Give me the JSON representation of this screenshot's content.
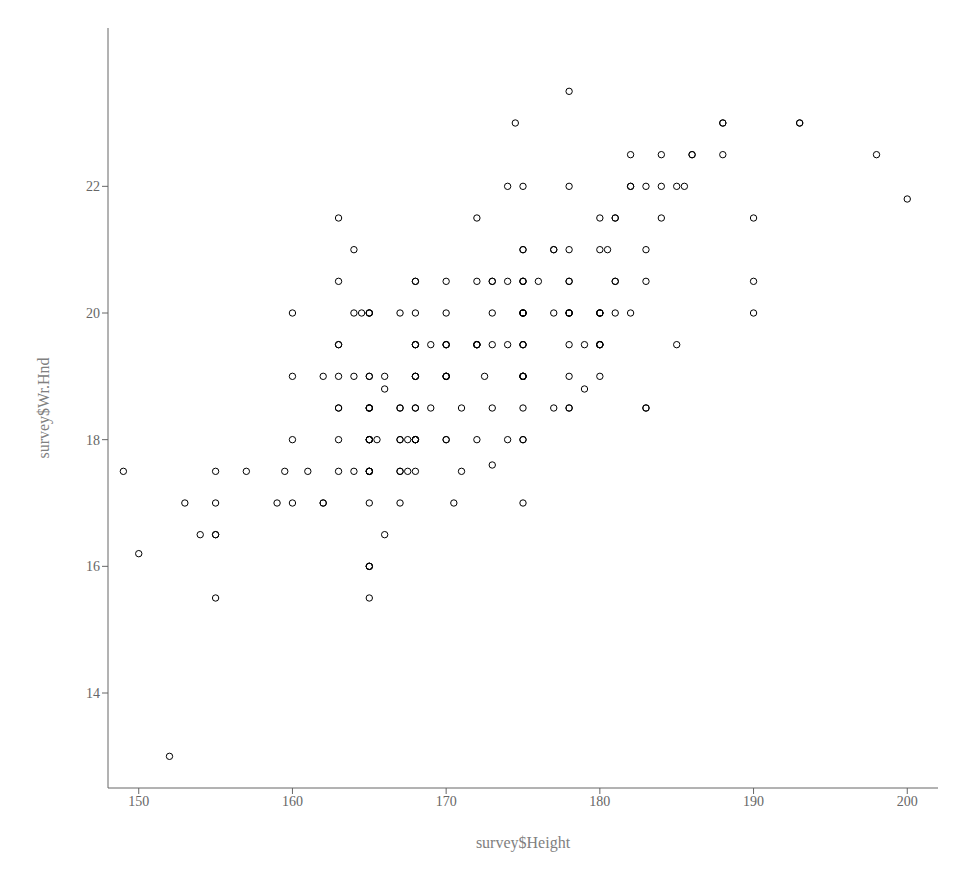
{
  "chart_data": {
    "type": "scatter",
    "x": [
      173.0,
      179.0,
      167.0,
      160.0,
      165.0,
      170.0,
      167.5,
      159.5,
      177.0,
      163.0,
      149.0,
      174.5,
      155.0,
      163.0,
      164.0,
      164.0,
      168.0,
      175.0,
      180.0,
      175.0,
      165.0,
      170.0,
      180.0,
      165.0,
      172.0,
      185.5,
      174.0,
      178.0,
      165.5,
      170.5,
      166.0,
      153.0,
      150.0,
      175.0,
      163.0,
      181.0,
      167.0,
      181.0,
      177.0,
      163.0,
      175.0,
      183.0,
      155.0,
      157.0,
      178.0,
      164.0,
      168.0,
      167.0,
      152.0,
      165.0,
      162.0,
      159.0,
      155.0,
      175.0,
      165.0,
      180.0,
      170.0,
      175.0,
      165.0,
      155.0,
      165.0,
      165.0,
      163.0,
      170.0,
      163.0,
      180.5,
      160.0,
      169.0,
      175.0,
      154.0,
      161.0,
      188.0,
      166.0,
      168.0,
      186.0,
      165.0,
      165.0,
      165.0,
      167.5,
      175.0,
      175.0,
      183.0,
      170.0,
      167.0,
      173.0,
      167.0,
      175.0,
      167.0,
      180.0,
      168.0,
      155.0,
      165.0,
      165.0,
      165.0,
      178.0,
      174.0,
      168.0,
      166.0,
      175.0,
      169.0,
      178.0,
      165.0,
      175.0,
      172.0,
      162.0,
      180.0,
      181.0,
      175.0,
      168.0,
      170.0,
      170.0,
      175.0,
      168.0,
      180.0,
      182.0,
      165.0,
      183.0,
      168.0,
      174.0,
      180.0,
      175.0,
      185.0,
      181.0,
      168.0,
      177.0,
      172.0,
      186.0,
      175.0,
      180.0,
      180.0,
      178.0,
      175.0,
      168.0,
      178.0,
      178.0,
      175.0,
      182.0,
      179.0,
      172.5,
      183.0,
      188.0,
      165.0,
      165.0,
      184.0,
      172.0,
      176.0,
      180.0,
      184.0,
      178.0,
      171.0,
      175.0,
      173.0,
      190.0,
      190.0,
      170.0,
      160.0,
      170.0,
      160.0,
      167.0,
      182.0,
      173.0,
      175.0,
      178.0,
      168.0,
      163.0,
      178.0,
      171.0,
      178.0,
      168.0,
      165.0,
      162.0,
      178.0,
      165.0,
      168.0,
      177.0,
      193.0,
      163.0,
      165.0,
      168.0,
      193.0,
      167.0,
      175.0,
      168.0,
      188.0,
      174.0,
      175.0,
      165.0,
      164.5,
      185.0,
      190.0,
      184.0,
      182.0,
      175.0,
      180.0,
      181.0,
      183.0,
      198.0,
      200.0,
      163.0,
      168.0,
      172.0,
      170.0,
      172.0,
      172.0,
      173.0,
      173.0,
      164.0,
      170.0,
      178.0
    ],
    "y": [
      17.6,
      18.8,
      20.0,
      18.0,
      20.0,
      19.5,
      18.0,
      17.5,
      21.0,
      21.5,
      17.5,
      23.0,
      16.5,
      19.5,
      21.0,
      17.5,
      18.0,
      19.0,
      20.0,
      20.0,
      20.0,
      19.5,
      19.0,
      19.0,
      18.0,
      22.0,
      19.5,
      20.0,
      18.0,
      17.0,
      18.8,
      17.0,
      16.2,
      17.0,
      19.0,
      21.5,
      18.5,
      20.0,
      18.5,
      18.0,
      20.0,
      18.5,
      16.5,
      17.5,
      20.0,
      20.0,
      18.0,
      17.0,
      13.0,
      16.0,
      17.0,
      17.0,
      15.5,
      18.0,
      18.0,
      19.5,
      19.0,
      19.0,
      15.5,
      17.5,
      18.0,
      17.5,
      20.5,
      18.0,
      17.5,
      21.0,
      17.0,
      19.5,
      18.5,
      16.5,
      17.5,
      22.5,
      19.0,
      18.0,
      22.5,
      18.5,
      18.5,
      18.0,
      17.5,
      21.0,
      20.5,
      21.0,
      19.0,
      17.5,
      19.5,
      17.5,
      18.0,
      18.0,
      20.0,
      18.5,
      17.0,
      17.5,
      17.0,
      16.0,
      19.5,
      18.0,
      18.5,
      16.5,
      19.0,
      18.5,
      20.0,
      18.0,
      19.5,
      19.5,
      17.0,
      19.5,
      20.5,
      19.0,
      19.0,
      19.5,
      18.0,
      19.0,
      18.0,
      20.0,
      22.0,
      16.0,
      18.5,
      20.0,
      20.5,
      19.5,
      20.0,
      19.5,
      21.5,
      20.5,
      21.0,
      19.5,
      22.5,
      19.5,
      21.0,
      21.5,
      23.5,
      20.5,
      19.0,
      20.5,
      20.0,
      20.0,
      20.0,
      19.5,
      19.0,
      22.0,
      23.0,
      20.0,
      18.5,
      22.5,
      20.5,
      20.5,
      19.5,
      21.5,
      20.5,
      17.5,
      21.0,
      20.5,
      21.5,
      20.0,
      19.0,
      19.0,
      20.5,
      20.0,
      18.5,
      22.0,
      20.0,
      22.0,
      21.0,
      19.5,
      18.5,
      22.0,
      18.5,
      19.0,
      17.5,
      18.5,
      19.0,
      18.5,
      17.5,
      19.0,
      20.0,
      23.0,
      18.5,
      19.0,
      19.5,
      23.0,
      18.0,
      19.5,
      19.5,
      23.0,
      22.0,
      20.0,
      17.5,
      20.0,
      22.0,
      20.5,
      22.0,
      22.5,
      20.5,
      20.0,
      20.5,
      20.5,
      22.5,
      21.8,
      19.5,
      20.5,
      21.5,
      19.0,
      19.5,
      19.5,
      20.5,
      18.5,
      19.0,
      20.0,
      18.5
    ],
    "xlabel": "survey$Height",
    "ylabel": "survey$Wr.Hnd",
    "xlim": [
      148,
      202
    ],
    "ylim": [
      12.5,
      24.5
    ],
    "xticks": [
      150,
      160,
      170,
      180,
      190,
      200
    ],
    "yticks": [
      14,
      16,
      18,
      20,
      22
    ],
    "color": "#000000",
    "marker": "circle",
    "grid": false
  }
}
